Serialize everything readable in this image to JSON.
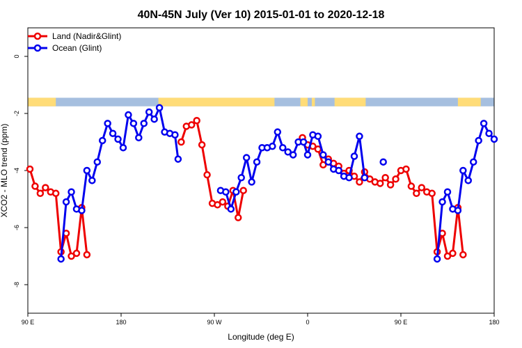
{
  "chart_data": {
    "type": "line",
    "title": "40N-45N July (Ver 10)   2015-01-01 to 2020-12-18",
    "xlabel": "Longitude (deg E)",
    "ylabel": "XCO2 - MLO trend (ppm)",
    "xlim": [
      90,
      540
    ],
    "ylim": [
      -9,
      1
    ],
    "x_ticks": [
      {
        "value": 90,
        "label": "90 E"
      },
      {
        "value": 180,
        "label": "180"
      },
      {
        "value": 270,
        "label": "90 W"
      },
      {
        "value": 360,
        "label": "0"
      },
      {
        "value": 450,
        "label": "90 E"
      },
      {
        "value": 540,
        "label": "180"
      }
    ],
    "y_ticks": [
      {
        "value": 0,
        "label": "0"
      },
      {
        "value": -2,
        "label": "-2"
      },
      {
        "value": -4,
        "label": "-4"
      },
      {
        "value": -6,
        "label": "-6"
      },
      {
        "value": -8,
        "label": "-8"
      }
    ],
    "grid": false,
    "legend_position": "top-left",
    "land_ocean_strip": {
      "y_range": [
        -1.45,
        -1.75
      ],
      "land_color": "#ffdc78",
      "ocean_color": "#a6bfdf"
    },
    "series": [
      {
        "name": "Land (Nadir&Glint)",
        "color": "#ee0000",
        "segments": [
          [
            [
              92,
              -3.95
            ],
            [
              97,
              -4.55
            ],
            [
              102,
              -4.8
            ],
            [
              107,
              -4.6
            ],
            [
              112,
              -4.75
            ],
            [
              117,
              -4.8
            ],
            [
              122,
              -6.85
            ],
            [
              127,
              -6.2
            ],
            [
              132,
              -7.0
            ],
            [
              137,
              -6.9
            ],
            [
              142,
              -5.3
            ],
            [
              147,
              -6.95
            ]
          ],
          [
            [
              238,
              -3.0
            ],
            [
              243,
              -2.45
            ],
            [
              248,
              -2.4
            ],
            [
              253,
              -2.25
            ],
            [
              258,
              -3.1
            ],
            [
              263,
              -4.15
            ],
            [
              268,
              -5.15
            ],
            [
              273,
              -5.2
            ],
            [
              278,
              -5.1
            ],
            [
              283,
              -5.25
            ],
            [
              288,
              -4.7
            ],
            [
              293,
              -5.65
            ],
            [
              298,
              -4.7
            ]
          ],
          [
            [
              355,
              -2.85
            ],
            [
              360,
              -3.1
            ],
            [
              365,
              -3.15
            ],
            [
              370,
              -3.25
            ],
            [
              375,
              -3.8
            ],
            [
              380,
              -3.6
            ],
            [
              385,
              -3.75
            ],
            [
              390,
              -3.85
            ],
            [
              395,
              -4.1
            ],
            [
              400,
              -4.0
            ],
            [
              405,
              -4.2
            ],
            [
              410,
              -4.4
            ],
            [
              415,
              -4.05
            ],
            [
              420,
              -4.3
            ],
            [
              425,
              -4.4
            ],
            [
              430,
              -4.45
            ],
            [
              435,
              -4.25
            ],
            [
              440,
              -4.5
            ],
            [
              445,
              -4.3
            ],
            [
              450,
              -4.0
            ],
            [
              455,
              -3.95
            ],
            [
              460,
              -4.55
            ],
            [
              465,
              -4.8
            ],
            [
              470,
              -4.6
            ],
            [
              475,
              -4.75
            ],
            [
              480,
              -4.8
            ],
            [
              485,
              -6.85
            ],
            [
              490,
              -6.2
            ],
            [
              495,
              -7.0
            ],
            [
              500,
              -6.9
            ],
            [
              505,
              -5.3
            ],
            [
              510,
              -6.95
            ]
          ]
        ]
      },
      {
        "name": "Ocean (Glint)",
        "color": "#0000ee",
        "segments": [
          [
            [
              122,
              -7.1
            ],
            [
              127,
              -5.1
            ],
            [
              132,
              -4.75
            ],
            [
              137,
              -5.35
            ],
            [
              142,
              -5.4
            ],
            [
              147,
              -4.0
            ],
            [
              152,
              -4.35
            ],
            [
              157,
              -3.7
            ],
            [
              162,
              -2.95
            ],
            [
              167,
              -2.35
            ],
            [
              172,
              -2.7
            ],
            [
              177,
              -2.9
            ],
            [
              182,
              -3.2
            ],
            [
              187,
              -2.05
            ],
            [
              192,
              -2.35
            ],
            [
              197,
              -2.85
            ],
            [
              202,
              -2.35
            ],
            [
              207,
              -1.95
            ],
            [
              212,
              -2.2
            ],
            [
              217,
              -1.8
            ],
            [
              222,
              -2.65
            ],
            [
              227,
              -2.7
            ],
            [
              232,
              -2.75
            ],
            [
              235,
              -3.6
            ]
          ],
          [
            [
              276,
              -4.7
            ],
            [
              281,
              -4.75
            ],
            [
              286,
              -5.35
            ],
            [
              291,
              -4.75
            ],
            [
              296,
              -4.25
            ],
            [
              301,
              -3.55
            ],
            [
              306,
              -4.4
            ],
            [
              311,
              -3.7
            ],
            [
              316,
              -3.2
            ],
            [
              321,
              -3.2
            ],
            [
              326,
              -3.15
            ],
            [
              331,
              -2.65
            ],
            [
              336,
              -3.2
            ],
            [
              341,
              -3.35
            ],
            [
              346,
              -3.45
            ],
            [
              351,
              -3.0
            ],
            [
              356,
              -3.0
            ],
            [
              360,
              -3.45
            ],
            [
              365,
              -2.75
            ],
            [
              370,
              -2.8
            ],
            [
              375,
              -3.45
            ],
            [
              380,
              -3.7
            ],
            [
              385,
              -3.95
            ],
            [
              390,
              -4.0
            ],
            [
              395,
              -4.2
            ],
            [
              400,
              -4.25
            ],
            [
              405,
              -3.5
            ],
            [
              410,
              -2.8
            ],
            [
              415,
              -4.25
            ]
          ],
          [
            [
              433,
              -3.7
            ]
          ],
          [
            [
              485,
              -7.1
            ],
            [
              490,
              -5.1
            ],
            [
              495,
              -4.75
            ],
            [
              500,
              -5.35
            ],
            [
              505,
              -5.4
            ],
            [
              510,
              -4.0
            ],
            [
              515,
              -4.35
            ],
            [
              520,
              -3.7
            ],
            [
              525,
              -2.95
            ],
            [
              530,
              -2.35
            ],
            [
              535,
              -2.7
            ],
            [
              540,
              -2.9
            ]
          ]
        ]
      }
    ]
  }
}
